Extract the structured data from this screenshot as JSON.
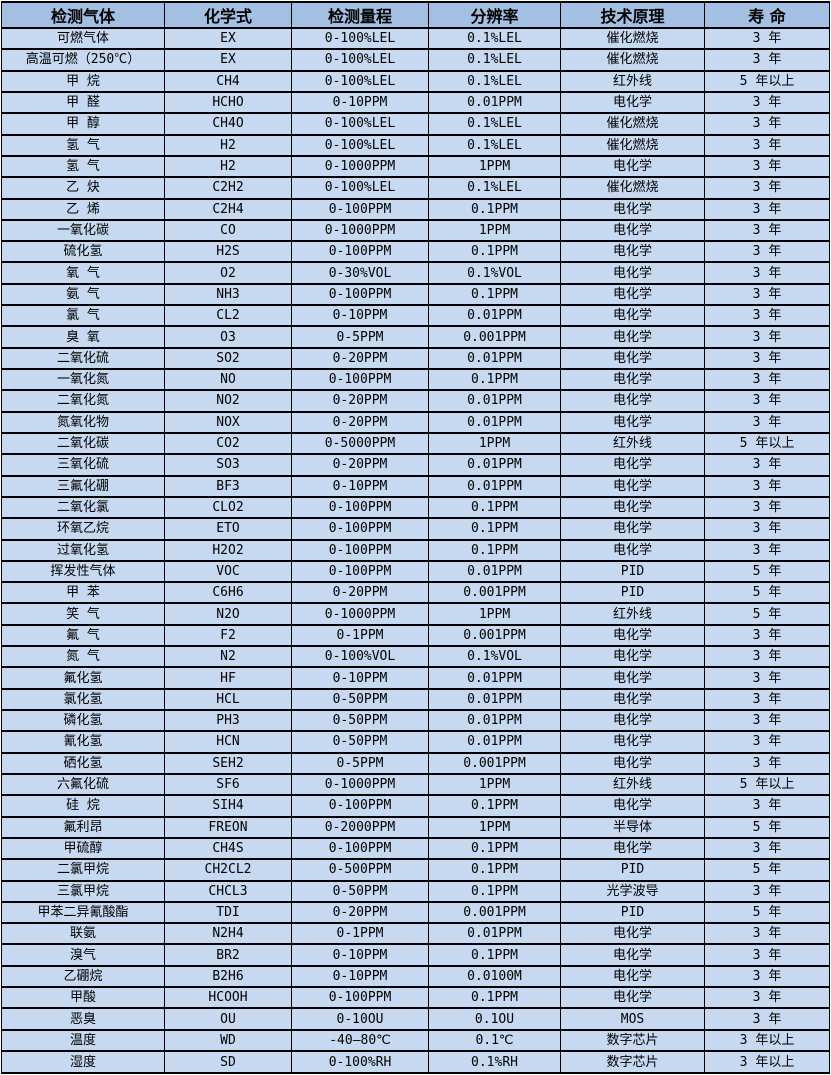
{
  "colors": {
    "header_bg": "#a3c0e2",
    "row_bg": "#c6d9f1",
    "border": "#000000",
    "text": "#000000"
  },
  "table": {
    "columns": [
      "检测气体",
      "化学式",
      "检测量程",
      "分辨率",
      "技术原理",
      "寿 命"
    ],
    "rows": [
      [
        "可燃气体",
        "EX",
        "0-100%LEL",
        "0.1%LEL",
        "催化燃烧",
        "3 年"
      ],
      [
        "高温可燃（250℃）",
        "EX",
        "0-100%LEL",
        "0.1%LEL",
        "催化燃烧",
        "3 年"
      ],
      [
        "甲 烷",
        "CH4",
        "0-100%LEL",
        "0.1%LEL",
        "红外线",
        "5 年以上"
      ],
      [
        "甲 醛",
        "HCHO",
        "0-10PPM",
        "0.01PPM",
        "电化学",
        "3 年"
      ],
      [
        "甲 醇",
        "CH4O",
        "0-100%LEL",
        "0.1%LEL",
        "催化燃烧",
        "3 年"
      ],
      [
        "氢 气",
        "H2",
        "0-100%LEL",
        "0.1%LEL",
        "催化燃烧",
        "3 年"
      ],
      [
        "氢 气",
        "H2",
        "0-1000PPM",
        "1PPM",
        "电化学",
        "3 年"
      ],
      [
        "乙 炔",
        "C2H2",
        "0-100%LEL",
        "0.1%LEL",
        "催化燃烧",
        "3 年"
      ],
      [
        "乙 烯",
        "C2H4",
        "0-100PPM",
        "0.1PPM",
        "电化学",
        "3 年"
      ],
      [
        "一氧化碳",
        "CO",
        "0-1000PPM",
        "1PPM",
        "电化学",
        "3 年"
      ],
      [
        "硫化氢",
        "H2S",
        "0-100PPM",
        "0.1PPM",
        "电化学",
        "3 年"
      ],
      [
        "氧 气",
        "O2",
        "0-30%VOL",
        "0.1%VOL",
        "电化学",
        "3 年"
      ],
      [
        "氨 气",
        "NH3",
        "0-100PPM",
        "0.1PPM",
        "电化学",
        "3 年"
      ],
      [
        "氯 气",
        "CL2",
        "0-10PPM",
        "0.01PPM",
        "电化学",
        "3 年"
      ],
      [
        "臭 氧",
        "O3",
        "0-5PPM",
        "0.001PPM",
        "电化学",
        "3 年"
      ],
      [
        "二氧化硫",
        "SO2",
        "0-20PPM",
        "0.01PPM",
        "电化学",
        "3 年"
      ],
      [
        "一氧化氮",
        "NO",
        "0-100PPM",
        "0.1PPM",
        "电化学",
        "3 年"
      ],
      [
        "二氧化氮",
        "NO2",
        "0-20PPM",
        "0.01PPM",
        "电化学",
        "3 年"
      ],
      [
        "氮氧化物",
        "NOX",
        "0-20PPM",
        "0.01PPM",
        "电化学",
        "3 年"
      ],
      [
        "二氧化碳",
        "CO2",
        "0-5000PPM",
        "1PPM",
        "红外线",
        "5 年以上"
      ],
      [
        "三氧化硫",
        "SO3",
        "0-20PPM",
        "0.01PPM",
        "电化学",
        "3 年"
      ],
      [
        "三氟化硼",
        "BF3",
        "0-10PPM",
        "0.01PPM",
        "电化学",
        "3 年"
      ],
      [
        "二氧化氯",
        "CLO2",
        "0-100PPM",
        "0.1PPM",
        "电化学",
        "3 年"
      ],
      [
        "环氧乙烷",
        "ETO",
        "0-100PPM",
        "0.1PPM",
        "电化学",
        "3 年"
      ],
      [
        "过氧化氢",
        "H2O2",
        "0-100PPM",
        "0.1PPM",
        "电化学",
        "3 年"
      ],
      [
        "挥发性气体",
        "VOC",
        "0-100PPM",
        "0.01PPM",
        "PID",
        "5 年"
      ],
      [
        "甲 苯",
        "C6H6",
        "0-20PPM",
        "0.001PPM",
        "PID",
        "5 年"
      ],
      [
        "笑 气",
        "N2O",
        "0-1000PPM",
        "1PPM",
        "红外线",
        "5 年"
      ],
      [
        "氟 气",
        "F2",
        "0-1PPM",
        "0.001PPM",
        "电化学",
        "3 年"
      ],
      [
        "氮 气",
        "N2",
        "0-100%VOL",
        "0.1%VOL",
        "电化学",
        "3 年"
      ],
      [
        "氟化氢",
        "HF",
        "0-10PPM",
        "0.01PPM",
        "电化学",
        "3 年"
      ],
      [
        "氯化氢",
        "HCL",
        "0-50PPM",
        "0.01PPM",
        "电化学",
        "3 年"
      ],
      [
        "磷化氢",
        "PH3",
        "0-50PPM",
        "0.01PPM",
        "电化学",
        "3 年"
      ],
      [
        "氰化氢",
        "HCN",
        "0-50PPM",
        "0.01PPM",
        "电化学",
        "3 年"
      ],
      [
        "硒化氢",
        "SEH2",
        "0-5PPM",
        "0.001PPM",
        "电化学",
        "3 年"
      ],
      [
        "六氟化硫",
        "SF6",
        "0-1000PPM",
        "1PPM",
        "红外线",
        "5 年以上"
      ],
      [
        "硅 烷",
        "SIH4",
        "0-100PPM",
        "0.1PPM",
        "电化学",
        "3 年"
      ],
      [
        "氟利昂",
        "FREON",
        "0-2000PPM",
        "1PPM",
        "半导体",
        "5 年"
      ],
      [
        "甲硫醇",
        "CH4S",
        "0-100PPM",
        "0.1PPM",
        "电化学",
        "3 年"
      ],
      [
        "二氯甲烷",
        "CH2CL2",
        "0-500PPM",
        "0.1PPM",
        "PID",
        "5 年"
      ],
      [
        "三氯甲烷",
        "CHCL3",
        "0-50PPM",
        "0.1PPM",
        "光学波导",
        "3 年"
      ],
      [
        "甲苯二异氰酸酯",
        "TDI",
        "0-20PPM",
        "0.001PPM",
        "PID",
        "5 年"
      ],
      [
        "联氨",
        "N2H4",
        "0-1PPM",
        "0.01PPM",
        "电化学",
        "3 年"
      ],
      [
        "溴气",
        "BR2",
        "0-10PPM",
        "0.1PPM",
        "电化学",
        "3 年"
      ],
      [
        "乙硼烷",
        "B2H6",
        "0-10PPM",
        "0.0100M",
        "电化学",
        "3 年"
      ],
      [
        "甲酸",
        "HCOOH",
        "0-100PPM",
        "0.1PPM",
        "电化学",
        "3 年"
      ],
      [
        "恶臭",
        "OU",
        "0-10OU",
        "0.1OU",
        "MOS",
        "3 年"
      ],
      [
        "温度",
        "WD",
        "-40—80℃",
        "0.1℃",
        "数字芯片",
        "3 年以上"
      ],
      [
        "湿度",
        "SD",
        "0-100%RH",
        "0.1%RH",
        "数字芯片",
        "3 年以上"
      ]
    ]
  }
}
